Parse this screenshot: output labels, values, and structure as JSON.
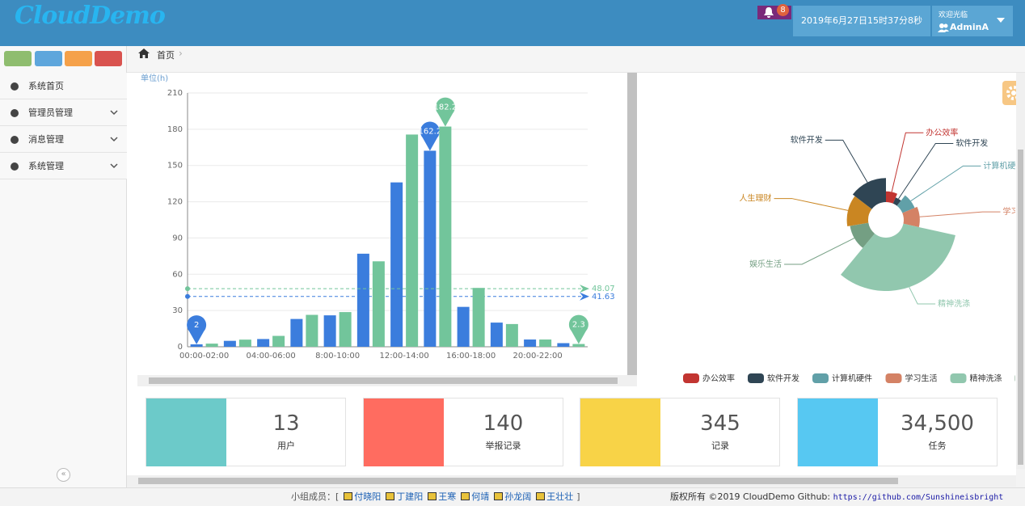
{
  "header": {
    "logo": "CloudDemo",
    "badge": 8,
    "datetime": "2019年6月27日15时37分8秒",
    "welcome": "欢迎光临",
    "user": "AdminA"
  },
  "sidebar": {
    "items": [
      "系统首页",
      "管理员管理",
      "消息管理",
      "系统管理"
    ]
  },
  "breadcrumb": "首页",
  "chart_data": [
    {
      "type": "bar",
      "y_axis_name": "单位(h)",
      "categories": [
        "00:00-02:00",
        null,
        "04:00-06:00",
        null,
        "8:00-10:00",
        null,
        "12:00-14:00",
        null,
        "16:00-18:00",
        null,
        "20:00-22:00",
        null
      ],
      "series": [
        {
          "color": "#3b7ddd",
          "values": [
            2,
            4.9,
            6.4,
            23,
            26,
            77,
            136,
            162.2,
            33,
            20,
            6,
            3
          ],
          "average": 41.63
        },
        {
          "color": "#72c59b",
          "values": [
            2.6,
            5.9,
            9,
            26.4,
            28.7,
            70.7,
            175.6,
            182.2,
            48.7,
            18.8,
            6,
            2.3
          ],
          "average": 48.07
        }
      ],
      "ylim": [
        0,
        210
      ],
      "yticks": [
        0,
        30,
        60,
        90,
        120,
        150,
        180,
        210
      ],
      "grid": true
    },
    {
      "type": "pie",
      "rose": true,
      "categories": [
        "办公效率",
        "软件开发",
        "计算机硬件",
        "学习生活",
        "精神洗涤",
        "娱乐生活",
        "人生理财",
        "软件开发"
      ],
      "values": [
        8,
        5,
        10,
        12,
        40,
        14,
        16,
        18
      ],
      "colors": [
        "#c23531",
        "#2f4554",
        "#61a0a8",
        "#d48265",
        "#91c7ae",
        "#749f83",
        "#ca8622",
        "#2f4554"
      ]
    }
  ],
  "stats": [
    {
      "value": 13,
      "label": "用户",
      "color": "#6ccac9"
    },
    {
      "value": 140,
      "label": "举报记录",
      "color": "#ff6c60"
    },
    {
      "value": 345,
      "label": "记录",
      "color": "#f8d347"
    },
    {
      "value": "34,500",
      "label": "任务",
      "color": "#57c8f2"
    }
  ],
  "footer": {
    "members_label": "小组成员：[",
    "members": [
      "付晓阳",
      "丁建阳",
      "王寒",
      "何靖",
      "孙龙阔",
      "王壮壮"
    ],
    "members_end": "]",
    "copyright": "版权所有 ©2019 CloudDemo Github: ",
    "link": "https://github.com/Sunshineisbright"
  }
}
